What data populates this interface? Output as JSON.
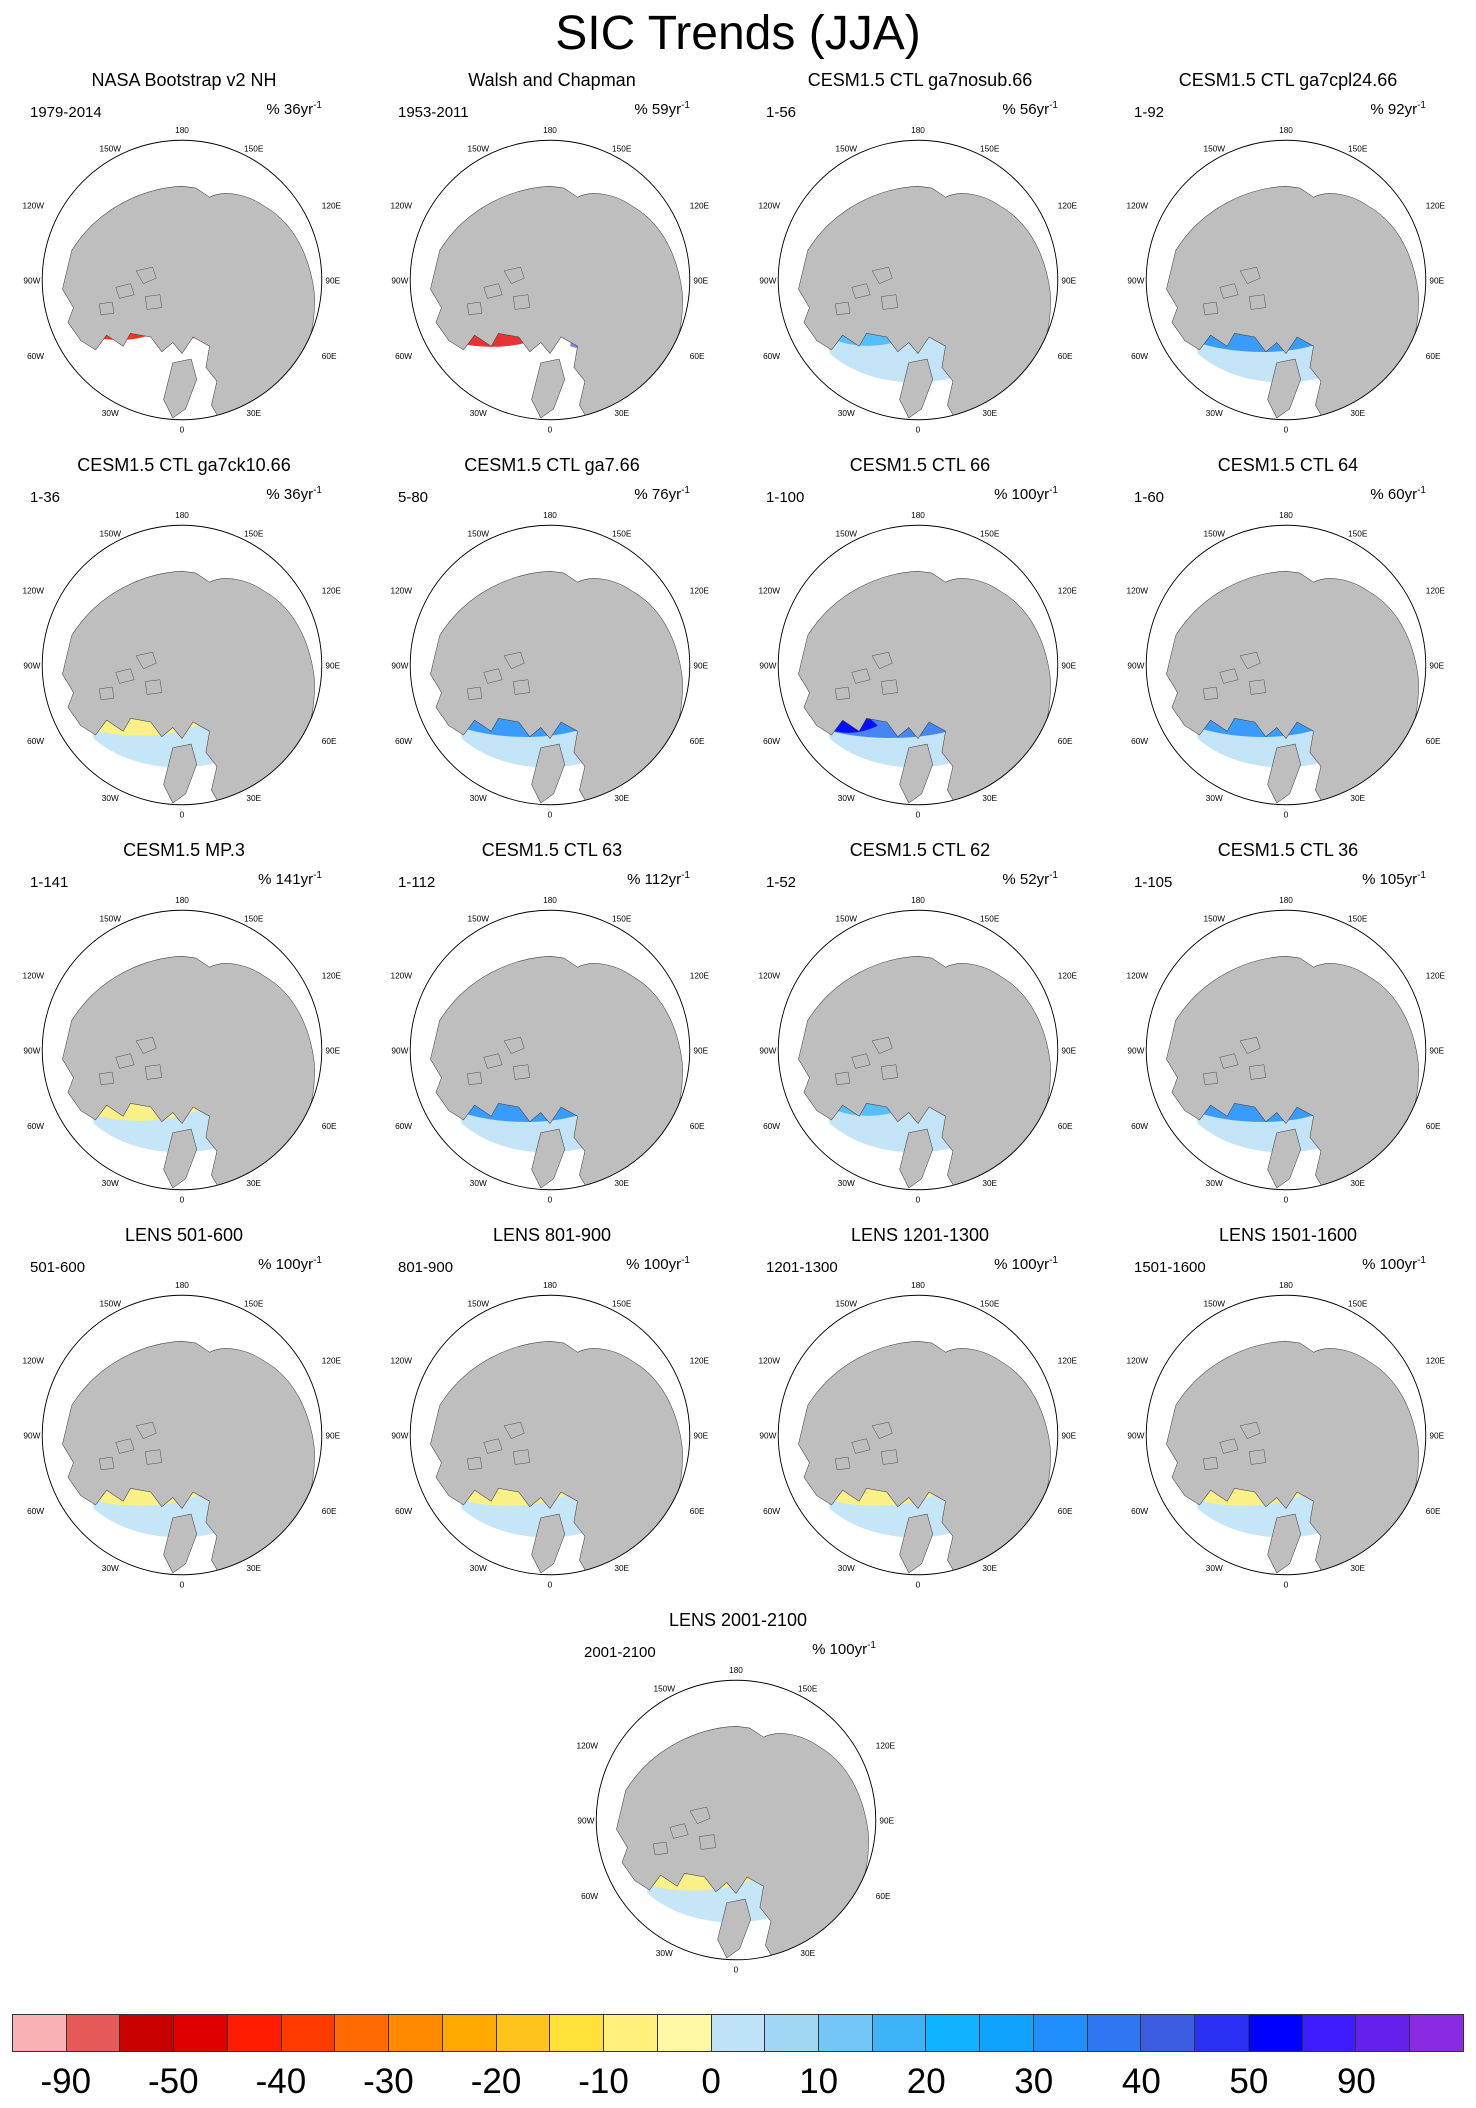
{
  "title": "SIC Trends (JJA)",
  "map_labels": {
    "top": "180",
    "bottom": "0",
    "left_upper": "120W",
    "left_mid": "90W",
    "left_lower": "60W",
    "right_upper": "120E",
    "right_mid": "90E",
    "right_lower": "60E",
    "top_left": "150W",
    "top_right": "150E",
    "bottom_left": "30W",
    "bottom_right": "30E"
  },
  "rate_unit": "yr",
  "rate_exponent": "-1",
  "panels": [
    {
      "title": "NASA Bootstrap v2 NH",
      "years": "1979-2014",
      "rate": "% 36",
      "pattern": "decline-strong"
    },
    {
      "title": "Walsh and Chapman",
      "years": "1953-2011",
      "rate": "% 59",
      "pattern": "decline-strong-2"
    },
    {
      "title": "CESM1.5 CTL ga7nosub.66",
      "years": "1-56",
      "rate": "% 56",
      "pattern": "mixed-blue"
    },
    {
      "title": "CESM1.5 CTL ga7cpl24.66",
      "years": "1-92",
      "rate": "% 92",
      "pattern": "blue"
    },
    {
      "title": "CESM1.5 CTL ga7ck10.66",
      "years": "1-36",
      "rate": "% 36",
      "pattern": "mixed-yellow"
    },
    {
      "title": "CESM1.5 CTL ga7.66",
      "years": "5-80",
      "rate": "% 76",
      "pattern": "blue"
    },
    {
      "title": "CESM1.5 CTL 66",
      "years": "1-100",
      "rate": "% 100",
      "pattern": "blue-strong"
    },
    {
      "title": "CESM1.5 CTL 64",
      "years": "1-60",
      "rate": "% 60",
      "pattern": "blue"
    },
    {
      "title": "CESM1.5 MP.3",
      "years": "1-141",
      "rate": "% 141",
      "pattern": "mixed-yellow"
    },
    {
      "title": "CESM1.5 CTL 63",
      "years": "1-112",
      "rate": "% 112",
      "pattern": "blue"
    },
    {
      "title": "CESM1.5 CTL 62",
      "years": "1-52",
      "rate": "% 52",
      "pattern": "mixed-blue"
    },
    {
      "title": "CESM1.5 CTL 36",
      "years": "1-105",
      "rate": "% 105",
      "pattern": "blue"
    },
    {
      "title": "LENS 501-600",
      "years": "501-600",
      "rate": "% 100",
      "pattern": "mixed-yellow"
    },
    {
      "title": "LENS 801-900",
      "years": "801-900",
      "rate": "% 100",
      "pattern": "mixed-yellow"
    },
    {
      "title": "LENS 1201-1300",
      "years": "1201-1300",
      "rate": "% 100",
      "pattern": "mixed-yellow"
    },
    {
      "title": "LENS 1501-1600",
      "years": "1501-1600",
      "rate": "% 100",
      "pattern": "mixed-yellow"
    },
    {
      "title": "LENS 2001-2100",
      "years": "2001-2100",
      "rate": "% 100",
      "pattern": "mixed-yellow"
    }
  ],
  "colorbar": {
    "colors": [
      "#f9b1b4",
      "#e55a59",
      "#c80000",
      "#e00000",
      "#ff1c00",
      "#ff3c00",
      "#ff6b00",
      "#ff8a00",
      "#ffa800",
      "#ffc41b",
      "#ffe13a",
      "#fff17b",
      "#fff8a5",
      "#bfe3f6",
      "#a1d6f5",
      "#73c7f4",
      "#3fb3f7",
      "#0fb3ff",
      "#10a3fe",
      "#218efd",
      "#2f76f2",
      "#3c5ddf",
      "#2b31f4",
      "#0000fe",
      "#3d1cff",
      "#6620ee",
      "#8a2be2"
    ],
    "ticks": [
      "-90",
      "-50",
      "-40",
      "-30",
      "-20",
      "-10",
      "0",
      "10",
      "20",
      "30",
      "40",
      "50",
      "90"
    ]
  }
}
